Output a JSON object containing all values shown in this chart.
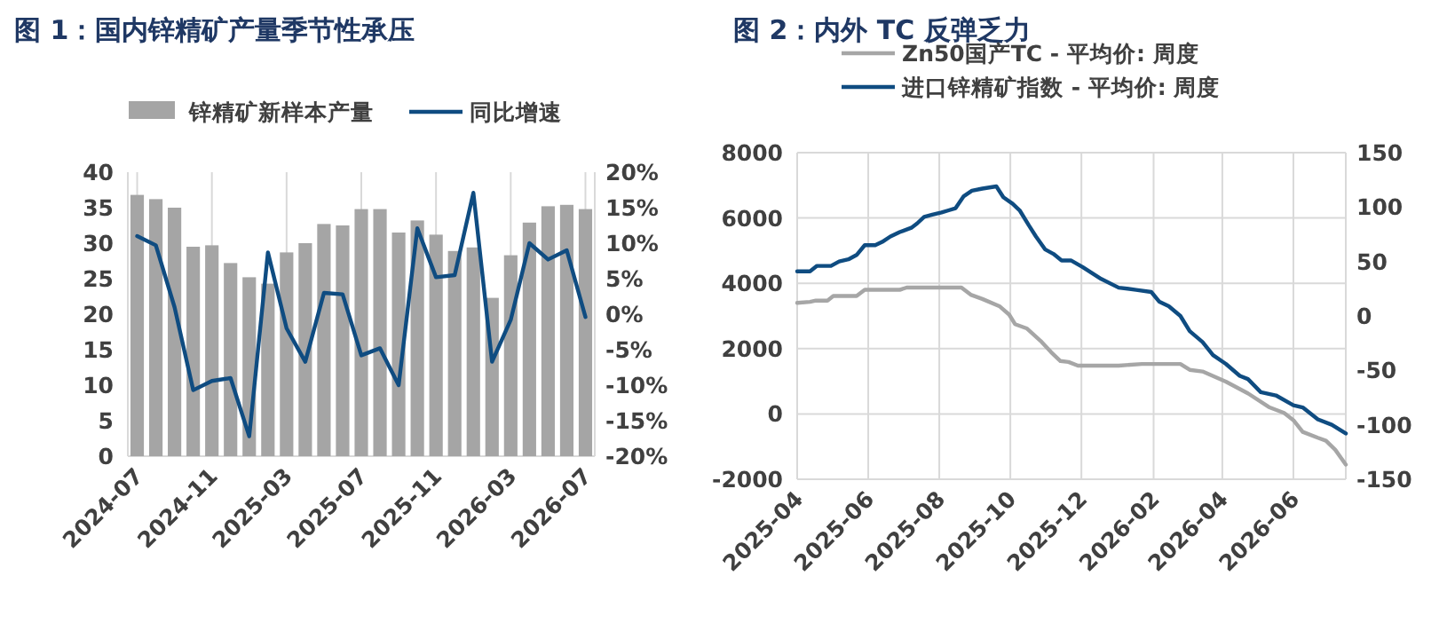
{
  "chart_data": [
    {
      "type": "bar",
      "title": "图 1：国内锌精矿产量季节性承压",
      "categories": [
        "2024-07",
        null,
        null,
        null,
        "2024-11",
        null,
        null,
        null,
        "2025-03",
        null,
        null,
        null,
        "2025-07",
        null,
        null,
        null,
        "2025-11",
        null,
        null,
        null,
        "2026-03",
        null,
        null,
        null,
        "2026-07"
      ],
      "series": [
        {
          "name": "锌精矿新样本产量",
          "color": "#a5a5a5",
          "values": [
            36.8,
            36.2,
            35,
            29.5,
            29.7,
            27.2,
            25.2,
            24.3,
            28.7,
            30,
            32.7,
            32.5,
            34.8,
            34.8,
            31.5,
            33.2,
            31.2,
            28.9,
            29.4,
            22.3,
            28.3,
            32.9,
            35.2,
            35.4,
            34.8
          ]
        },
        {
          "name": "同比增速",
          "type": "line",
          "axis": "y2",
          "color": "#0f4c81",
          "values": [
            11,
            9.7,
            1,
            -10.7,
            -9.4,
            -9,
            -17.2,
            8.7,
            -2,
            -6.7,
            3,
            2.8,
            -5.8,
            -4.8,
            -10,
            12.1,
            5.2,
            5.5,
            17.1,
            -6.7,
            -0.8,
            10,
            7.7,
            9,
            -0.4
          ]
        }
      ],
      "ylim": [
        0,
        40
      ],
      "yticks": [
        0,
        5,
        10,
        15,
        20,
        25,
        30,
        35,
        40
      ],
      "y2lim": [
        -20,
        20
      ],
      "y2ticks": [
        {
          "value": -20,
          "label": "-20%"
        },
        {
          "value": -15,
          "label": "-15%"
        },
        {
          "value": -10,
          "label": "-10%"
        },
        {
          "value": -5,
          "label": "-5%"
        },
        {
          "value": 0,
          "label": "0%"
        },
        {
          "value": 5,
          "label": "5%"
        },
        {
          "value": 10,
          "label": "10%"
        },
        {
          "value": 15,
          "label": "15%"
        },
        {
          "value": 20,
          "label": "20%"
        }
      ],
      "grid": "x",
      "legend": "top"
    },
    {
      "type": "line",
      "title": "图 2：内外 TC 反弹乏力",
      "series": [
        {
          "name": "Zn50国产TC - 平均价: 周度",
          "color": "#a6a6a6",
          "x": [
            "2025-04-01",
            "2025-04-12",
            "2025-04-17",
            "2025-04-27",
            "2025-05-02",
            "2025-05-22",
            "2025-05-29",
            "2025-06-28",
            "2025-07-04",
            "2025-08-20",
            "2025-08-28",
            "2025-09-07",
            "2025-09-22",
            "2025-09-30",
            "2025-10-05",
            "2025-10-15",
            "2025-10-28",
            "2025-11-05",
            "2025-11-13",
            "2025-11-20",
            "2025-11-28",
            "2025-12-02",
            "2026-01-02",
            "2026-01-22",
            "2026-02-24",
            "2026-03-04",
            "2026-03-15",
            "2026-04-04",
            "2026-04-23",
            "2026-05-11",
            "2026-05-24",
            "2026-06-01",
            "2026-06-09",
            "2026-06-22",
            "2026-06-29",
            "2026-07-07",
            "2026-07-16"
          ],
          "values": [
            3400,
            3430,
            3470,
            3470,
            3610,
            3610,
            3800,
            3800,
            3870,
            3870,
            3650,
            3520,
            3290,
            3040,
            2750,
            2620,
            2200,
            1890,
            1620,
            1590,
            1480,
            1480,
            1480,
            1530,
            1530,
            1350,
            1300,
            990,
            630,
            210,
            30,
            -190,
            -550,
            -730,
            -820,
            -1100,
            -1550
          ]
        },
        {
          "name": "进口锌精矿指数 - 平均价: 周度",
          "color": "#0f4c81",
          "axis": "y2",
          "x": [
            "2025-04-01",
            "2025-04-12",
            "2025-04-18",
            "2025-04-30",
            "2025-05-07",
            "2025-05-15",
            "2025-05-22",
            "2025-05-29",
            "2025-06-07",
            "2025-06-13",
            "2025-06-20",
            "2025-06-28",
            "2025-07-08",
            "2025-07-13",
            "2025-07-19",
            "2025-07-26",
            "2025-08-03",
            "2025-08-09",
            "2025-08-15",
            "2025-08-22",
            "2025-08-29",
            "2025-09-07",
            "2025-09-19",
            "2025-09-25",
            "2025-10-03",
            "2025-10-09",
            "2025-10-17",
            "2025-10-23",
            "2025-10-31",
            "2025-11-07",
            "2025-11-14",
            "2025-11-22",
            "2025-12-02",
            "2025-12-18",
            "2026-01-02",
            "2026-01-17",
            "2026-01-30",
            "2026-02-06",
            "2026-02-14",
            "2026-02-24",
            "2026-03-04",
            "2026-03-15",
            "2026-03-24",
            "2026-04-04",
            "2026-04-16",
            "2026-04-23",
            "2026-05-04",
            "2026-05-17",
            "2026-06-01",
            "2026-06-09",
            "2026-06-22",
            "2026-07-04",
            "2026-07-16"
          ],
          "values": [
            41,
            41,
            46,
            46,
            50,
            52,
            56,
            65,
            65,
            68,
            73,
            77,
            81,
            85,
            91,
            93,
            95,
            97,
            99,
            110,
            115,
            117,
            119,
            109,
            103,
            97,
            83,
            73,
            61,
            57,
            51,
            51,
            45,
            34,
            26,
            24,
            22,
            13,
            9,
            0,
            -14,
            -24,
            -36,
            -44,
            -55,
            -58,
            -70,
            -73,
            -82,
            -84,
            -95,
            -100,
            -108
          ]
        }
      ],
      "xlim": [
        "2025-04-01",
        "2026-07-16"
      ],
      "xticks": [
        "2025-04",
        "2025-06",
        "2025-08",
        "2025-10",
        "2025-12",
        "2026-02",
        "2026-04",
        "2026-06"
      ],
      "ylim": [
        -2000,
        8000
      ],
      "yticks": [
        -2000,
        0,
        2000,
        4000,
        6000,
        8000
      ],
      "y2lim": [
        -150,
        150
      ],
      "y2ticks": [
        -150,
        -100,
        -50,
        0,
        50,
        100,
        150
      ],
      "grid": true,
      "legend": "top"
    }
  ]
}
